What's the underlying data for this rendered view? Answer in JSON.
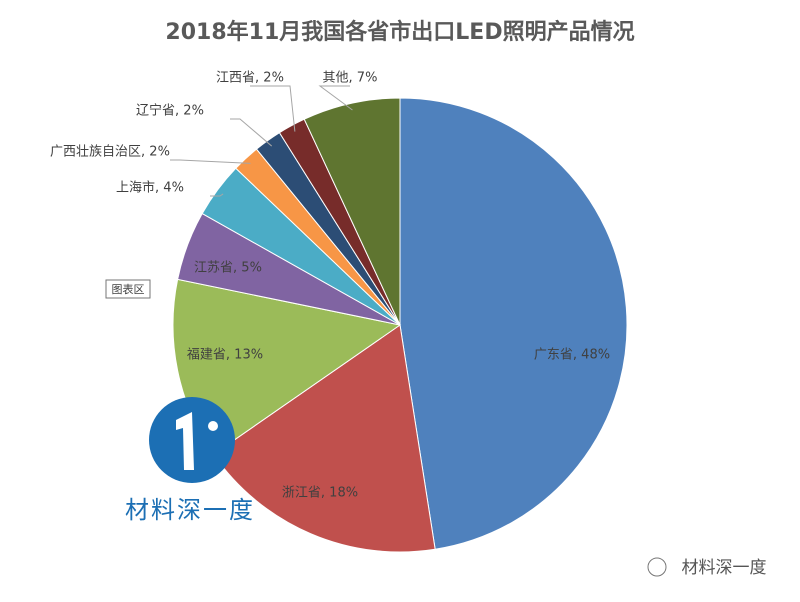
{
  "chart_data": {
    "type": "pie",
    "title": "2018年11月我国各省市出口LED照明产品情况",
    "categories": [
      "广东省",
      "浙江省",
      "福建省",
      "江苏省",
      "上海市",
      "广西壮族自治区",
      "辽宁省",
      "江西省",
      "其他"
    ],
    "values": [
      48,
      18,
      13,
      5,
      4,
      2,
      2,
      2,
      7
    ],
    "value_labels": [
      "广东省, 48%",
      "浙江省, 18%",
      "福建省, 13%",
      "江苏省, 5%",
      "上海市, 4%",
      "广西壮族自治区, 2%",
      "辽宁省, 2%",
      "江西省, 2%",
      "其他, 7%"
    ],
    "colors": [
      "#4f81bd",
      "#c0504d",
      "#9bbb59",
      "#8064a2",
      "#4bacc6",
      "#f79646",
      "#2c4d75",
      "#772c2a",
      "#5f7530"
    ]
  },
  "tooltip": "图表区",
  "watermark": "材料深一度",
  "source": "材料深一度"
}
